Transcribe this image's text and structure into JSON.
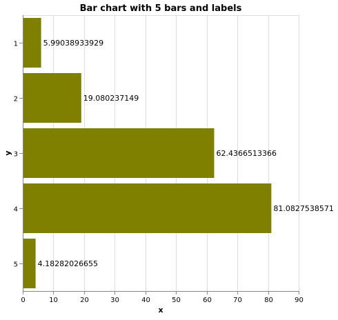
{
  "chart_data": {
    "type": "bar",
    "orientation": "horizontal",
    "title": "Bar chart with 5 bars and labels",
    "xlabel": "x",
    "ylabel": "y",
    "categories": [
      "1",
      "2",
      "3",
      "4",
      "5"
    ],
    "values": [
      5.99038933929,
      19.080237149,
      62.4366513366,
      81.0827538571,
      4.18282026655
    ],
    "value_labels": [
      "5.99038933929",
      "19.080237149",
      "62.4366513366",
      "81.0827538571",
      "4.18282026655"
    ],
    "xlim": [
      0,
      90
    ],
    "x_ticks": [
      0,
      10,
      20,
      30,
      40,
      50,
      60,
      70,
      80,
      90
    ],
    "grid": true,
    "bar_color": "#808000"
  }
}
